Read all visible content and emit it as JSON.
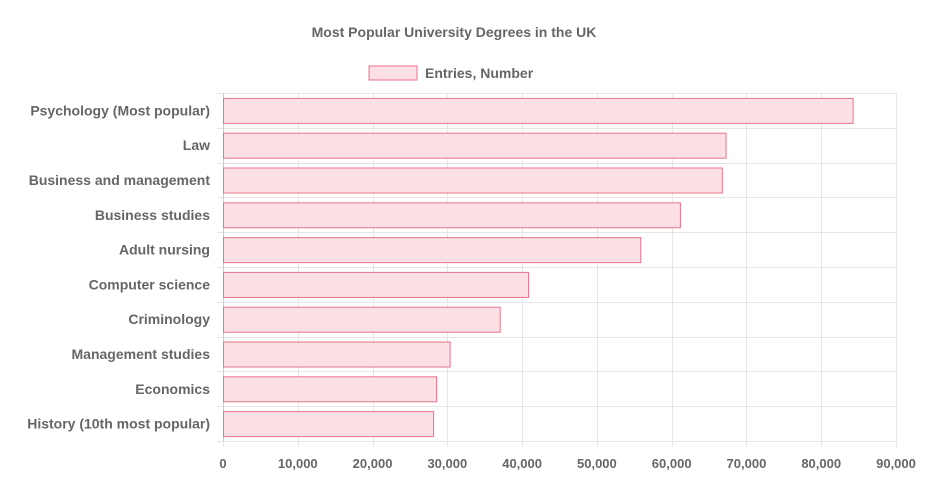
{
  "chart_data": {
    "type": "bar",
    "orientation": "horizontal",
    "title": "Most Popular University Degrees in the UK",
    "legend_position": "top",
    "grid": true,
    "categories": [
      "Psychology (Most popular)",
      "Law",
      "Business and management",
      "Business studies",
      "Adult nursing",
      "Computer science",
      "Criminology",
      "Management studies",
      "Economics",
      "History (10th most popular)"
    ],
    "series": [
      {
        "name": "Entries, Number",
        "values": [
          84200,
          67200,
          66700,
          61100,
          55800,
          40800,
          37000,
          30300,
          28500,
          28100
        ]
      }
    ],
    "xlim": [
      0,
      90000
    ],
    "x_ticks": [
      0,
      10000,
      20000,
      30000,
      40000,
      50000,
      60000,
      70000,
      80000,
      90000
    ],
    "x_tick_labels": [
      "0",
      "10,000",
      "20,000",
      "30,000",
      "40,000",
      "50,000",
      "60,000",
      "70,000",
      "80,000",
      "90,000"
    ],
    "colors": {
      "bar_fill": "#fde0e6",
      "bar_stroke": "#e8738a",
      "grid": "#e6e6e6",
      "text": "#666666"
    }
  }
}
